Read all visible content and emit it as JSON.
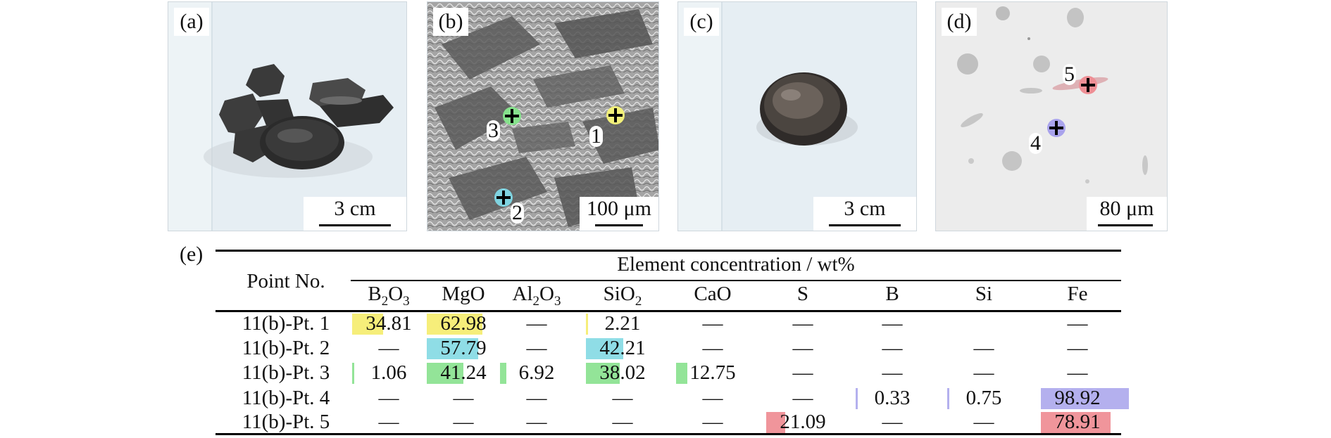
{
  "panels": {
    "a": {
      "label": "(a)",
      "scale": "3 cm",
      "bg": "#e6eef3"
    },
    "b": {
      "label": "(b)",
      "scale": "100 μm",
      "points": [
        {
          "num": "1",
          "color": "#f2f07a"
        },
        {
          "num": "2",
          "color": "#7fd3e0"
        },
        {
          "num": "3",
          "color": "#86e28c"
        }
      ]
    },
    "c": {
      "label": "(c)",
      "scale": "3 cm",
      "bg": "#e6eef3"
    },
    "d": {
      "label": "(d)",
      "scale": "80 μm",
      "points": [
        {
          "num": "4",
          "color": "#a9a3ec"
        },
        {
          "num": "5",
          "color": "#ee8f95"
        }
      ]
    }
  },
  "table": {
    "label": "(e)",
    "row_header": "Point No.",
    "group_header": "Element concentration / wt%",
    "columns": [
      {
        "base": "B",
        "sub1": "2",
        "mid": "O",
        "sub2": "3"
      },
      {
        "base": "MgO",
        "sub1": "",
        "mid": "",
        "sub2": ""
      },
      {
        "base": "Al",
        "sub1": "2",
        "mid": "O",
        "sub2": "3"
      },
      {
        "base": "SiO",
        "sub1": "2",
        "mid": "",
        "sub2": ""
      },
      {
        "base": "CaO",
        "sub1": "",
        "mid": "",
        "sub2": ""
      },
      {
        "base": "S",
        "sub1": "",
        "mid": "",
        "sub2": ""
      },
      {
        "base": "B",
        "sub1": "",
        "mid": "",
        "sub2": ""
      },
      {
        "base": "Si",
        "sub1": "",
        "mid": "",
        "sub2": ""
      },
      {
        "base": "Fe",
        "sub1": "",
        "mid": "",
        "sub2": ""
      }
    ],
    "rows": [
      {
        "label": "11(b)-Pt. 1",
        "color": "#f6ee7a",
        "values": [
          "34.81",
          "62.98",
          "—",
          "2.21",
          "—",
          "—",
          "—",
          "",
          "—"
        ]
      },
      {
        "label": "11(b)-Pt. 2",
        "color": "#8fdde6",
        "values": [
          "—",
          "57.79",
          "—",
          "42.21",
          "—",
          "—",
          "—",
          "—",
          "—"
        ]
      },
      {
        "label": "11(b)-Pt. 3",
        "color": "#93e498",
        "values": [
          "1.06",
          "41.24",
          "6.92",
          "38.02",
          "12.75",
          "—",
          "—",
          "—",
          "—"
        ]
      },
      {
        "label": "11(b)-Pt. 4",
        "color": "#b4b0ee",
        "values": [
          "—",
          "—",
          "—",
          "—",
          "—",
          "—",
          "0.33",
          "0.75",
          "98.92"
        ]
      },
      {
        "label": "11(b)-Pt. 5",
        "color": "#f0959b",
        "values": [
          "—",
          "—",
          "—",
          "—",
          "—",
          "21.09",
          "—",
          "—",
          "78.91"
        ]
      }
    ]
  }
}
